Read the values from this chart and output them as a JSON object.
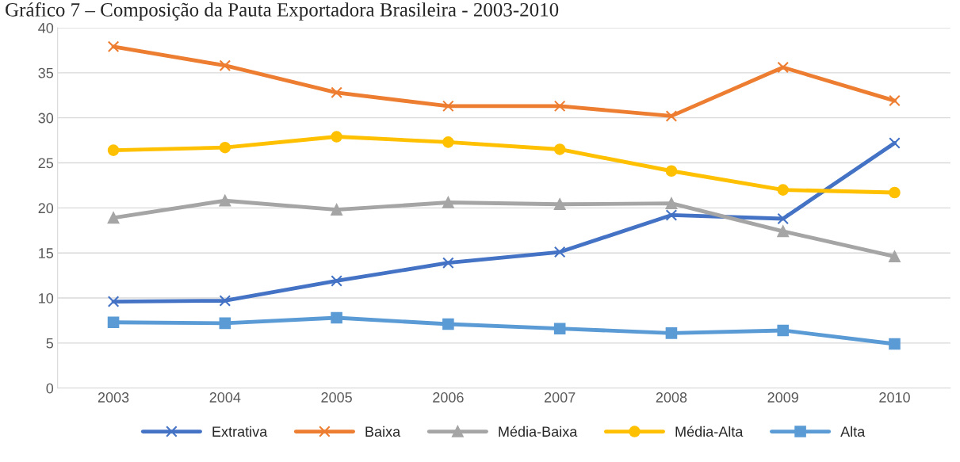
{
  "chart_data": {
    "type": "line",
    "title": "Gráfico 7 – Composição da Pauta Exportadora Brasileira - 2003-2010",
    "categories": [
      "2003",
      "2004",
      "2005",
      "2006",
      "2007",
      "2008",
      "2009",
      "2010"
    ],
    "series": [
      {
        "name": "Extrativa",
        "color": "#4472c4",
        "marker": "cross",
        "values": [
          9.6,
          9.7,
          11.9,
          13.9,
          15.1,
          19.2,
          18.8,
          27.2
        ]
      },
      {
        "name": "Baixa",
        "color": "#ed7d31",
        "marker": "cross",
        "values": [
          37.9,
          35.8,
          32.8,
          31.3,
          31.3,
          30.2,
          35.6,
          31.9
        ]
      },
      {
        "name": "Média-Baixa",
        "color": "#a5a5a5",
        "marker": "triangle",
        "values": [
          18.9,
          20.8,
          19.8,
          20.6,
          20.4,
          20.5,
          17.4,
          14.6
        ]
      },
      {
        "name": "Média-Alta",
        "color": "#ffc000",
        "marker": "circle",
        "values": [
          26.4,
          26.7,
          27.9,
          27.3,
          26.5,
          24.1,
          22.0,
          21.7
        ]
      },
      {
        "name": "Alta",
        "color": "#5b9bd5",
        "marker": "square",
        "values": [
          7.3,
          7.2,
          7.8,
          7.1,
          6.6,
          6.1,
          6.4,
          4.9
        ]
      }
    ],
    "ylim": [
      0,
      40
    ],
    "yticks": [
      0,
      5,
      10,
      15,
      20,
      25,
      30,
      35,
      40
    ],
    "grid": "y",
    "legend": "bottom"
  }
}
